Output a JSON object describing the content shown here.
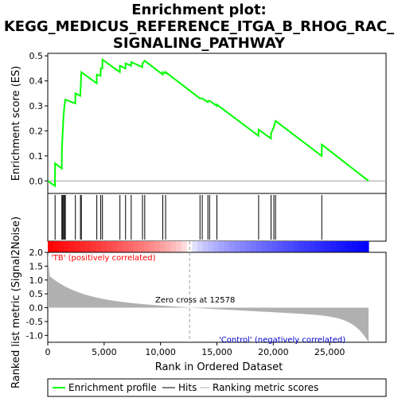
{
  "chart_data": {
    "type": "line",
    "title_lines": [
      "Enrichment plot:",
      "KEGG_MEDICUS_REFERENCE_ITGA_B_RHOG_RAC_",
      "SIGNALING_PATHWAY"
    ],
    "ylabel_top": "Enrichment score (ES)",
    "ylabel_bottom": "Ranked list metric (Signal2Noise)",
    "xlabel": "Rank in Ordered Dataset",
    "xlim": [
      0,
      30000
    ],
    "xticks": [
      0,
      5000,
      10000,
      15000,
      20000,
      25000
    ],
    "xtick_labels": [
      "0",
      "5,000",
      "10,000",
      "15,000",
      "20,000",
      "25,000"
    ],
    "es_ylim": [
      -0.05,
      0.51
    ],
    "es_yticks": [
      0.0,
      0.1,
      0.2,
      0.3,
      0.4,
      0.5
    ],
    "es_ytick_labels": [
      "0.0",
      "0.1",
      "0.2",
      "0.3",
      "0.4",
      "0.5"
    ],
    "metric_ylim": [
      -1.25,
      2.0
    ],
    "metric_yticks": [
      -1.0,
      -0.5,
      0.0,
      0.5,
      1.0,
      1.5,
      2.0
    ],
    "metric_ytick_labels": [
      "-1.0",
      "-0.5",
      "0.0",
      "0.5",
      "1.0",
      "1.5",
      "2.0"
    ],
    "n_genes": 28450,
    "zero_cross": 12578,
    "zero_cross_label": "Zero cross at 12578",
    "pos_label": "'TB' (positively correlated)",
    "neg_label": "'Control' (negatively correlated)",
    "es_color": "#00ff00",
    "pos_color": "#ff0000",
    "neg_color": "#0000ff",
    "hits": [
      650,
      1250,
      1320,
      1400,
      1480,
      1560,
      2450,
      2900,
      2980,
      4350,
      4700,
      4850,
      6400,
      6900,
      7400,
      8400,
      8600,
      10200,
      10450,
      13500,
      13700,
      14200,
      14350,
      15000,
      18700,
      19800,
      20050,
      20200,
      24300
    ],
    "es_points": [
      [
        0,
        0.0
      ],
      [
        640,
        -0.02
      ],
      [
        650,
        0.07
      ],
      [
        1240,
        0.05
      ],
      [
        1250,
        0.12
      ],
      [
        1320,
        0.19
      ],
      [
        1400,
        0.26
      ],
      [
        1480,
        0.3
      ],
      [
        1560,
        0.325
      ],
      [
        2440,
        0.31
      ],
      [
        2450,
        0.35
      ],
      [
        2890,
        0.34
      ],
      [
        2900,
        0.36
      ],
      [
        2980,
        0.435
      ],
      [
        4340,
        0.39
      ],
      [
        4350,
        0.425
      ],
      [
        4690,
        0.42
      ],
      [
        4700,
        0.45
      ],
      [
        4840,
        0.45
      ],
      [
        4850,
        0.485
      ],
      [
        6390,
        0.435
      ],
      [
        6400,
        0.46
      ],
      [
        6890,
        0.45
      ],
      [
        6900,
        0.47
      ],
      [
        7390,
        0.46
      ],
      [
        7400,
        0.475
      ],
      [
        8390,
        0.455
      ],
      [
        8400,
        0.47
      ],
      [
        8600,
        0.48
      ],
      [
        10190,
        0.425
      ],
      [
        10200,
        0.435
      ],
      [
        10440,
        0.43
      ],
      [
        10450,
        0.435
      ],
      [
        13490,
        0.33
      ],
      [
        13500,
        0.33
      ],
      [
        13700,
        0.33
      ],
      [
        14190,
        0.315
      ],
      [
        14200,
        0.32
      ],
      [
        14350,
        0.32
      ],
      [
        14990,
        0.3
      ],
      [
        15000,
        0.305
      ],
      [
        18690,
        0.18
      ],
      [
        18700,
        0.205
      ],
      [
        19790,
        0.17
      ],
      [
        19800,
        0.19
      ],
      [
        20050,
        0.215
      ],
      [
        20200,
        0.24
      ],
      [
        24290,
        0.1
      ],
      [
        24300,
        0.145
      ],
      [
        28450,
        0.0
      ]
    ],
    "legend": [
      "Enrichment profile",
      "Hits",
      "Ranking metric scores"
    ]
  }
}
